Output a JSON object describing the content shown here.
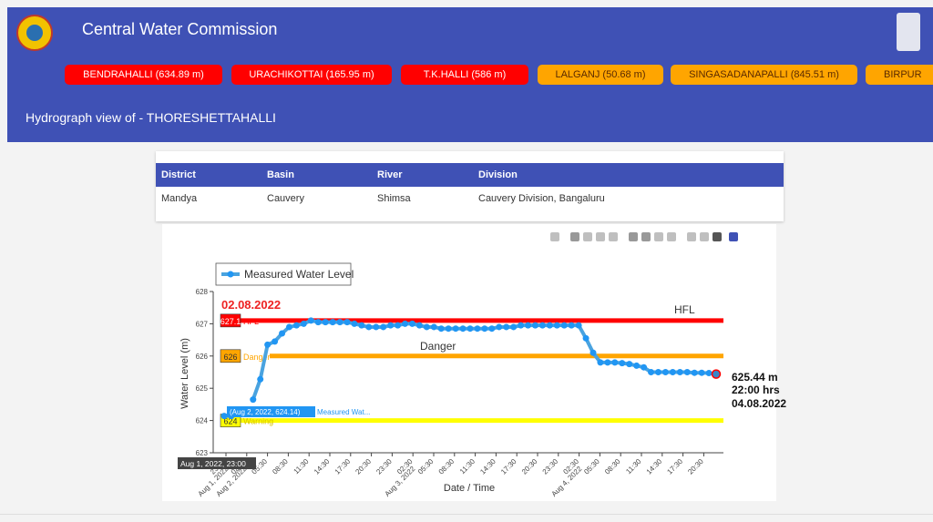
{
  "header": {
    "title": "Central Water Commission"
  },
  "ticker": [
    {
      "label": "BENDRAHALLI (634.89 m)",
      "status": "red"
    },
    {
      "label": "URACHIKOTTAI (165.95 m)",
      "status": "red"
    },
    {
      "label": "T.K.HALLI (586 m)",
      "status": "red"
    },
    {
      "label": "LALGANJ (50.68 m)",
      "status": "orange"
    },
    {
      "label": "SINGASADANAPALLI (845.51 m)",
      "status": "orange"
    },
    {
      "label": "BIRPUR",
      "status": "orange"
    }
  ],
  "subheader": {
    "title": "Hydrograph view of - THORESHETTAHALLI"
  },
  "station_table": {
    "headers": [
      "District",
      "Basin",
      "River",
      "Division"
    ],
    "values": [
      "Mandya",
      "Cauvery",
      "Shimsa",
      "Cauvery Division, Bangaluru"
    ]
  },
  "colors": {
    "header_bg": "#3f51b5",
    "series": "#4aa3df",
    "hfl": "#ff0000",
    "danger": "#ffa500",
    "warning": "#ffff00"
  },
  "chart_data": {
    "type": "line",
    "xlabel": "Date / Time",
    "ylabel": "Water Level (m)",
    "ylim": [
      623,
      628
    ],
    "yticks": [
      623,
      624,
      625,
      626,
      627,
      628
    ],
    "xticks": [
      "23:30",
      "02:30",
      "05:30",
      "08:30",
      "11:30",
      "14:30",
      "17:30",
      "20:30",
      "23:30",
      "02:30",
      "05:30",
      "08:30",
      "11:30",
      "14:30",
      "17:30",
      "20:30",
      "23:30",
      "02:30",
      "05:30",
      "08:30",
      "11:30",
      "14:30",
      "17:30",
      "20:30"
    ],
    "xtick_date_labels": [
      "Aug 1, 2022",
      "Aug 2, 2022",
      "Aug 3, 2022",
      "Aug 4, 2022"
    ],
    "legend": {
      "entry": "Measured Water Level",
      "position": "top-left"
    },
    "series": [
      {
        "name": "Measured Water Level",
        "values": [
          624.14,
          624.14,
          null,
          null,
          624.65,
          625.28,
          626.35,
          626.45,
          626.7,
          626.9,
          626.95,
          627.0,
          627.1,
          627.05,
          627.05,
          627.05,
          627.05,
          627.05,
          627.0,
          626.95,
          626.9,
          626.9,
          626.9,
          626.95,
          626.95,
          627.0,
          627.0,
          626.95,
          626.9,
          626.9,
          626.85,
          626.85,
          626.85,
          626.85,
          626.85,
          626.85,
          626.85,
          626.85,
          626.9,
          626.9,
          626.9,
          626.95,
          626.95,
          626.95,
          626.95,
          626.95,
          626.95,
          626.95,
          626.95,
          626.95,
          626.55,
          626.1,
          625.8,
          625.8,
          625.8,
          625.78,
          625.75,
          625.7,
          625.65,
          625.5,
          625.5,
          625.5,
          625.5,
          625.5,
          625.5,
          625.48,
          625.48,
          625.47,
          625.44
        ]
      }
    ],
    "thresholds": [
      {
        "name": "HFL",
        "value": 627.1,
        "label": "627.1",
        "color": "#ff0000"
      },
      {
        "name": "Danger",
        "value": 626,
        "label": "626",
        "color": "#ffa500"
      },
      {
        "name": "Warning",
        "value": 624,
        "label": "624",
        "color": "#ffff00"
      }
    ],
    "annotations": {
      "date_label": "02.08.2022",
      "hfl_text": "HFL",
      "danger_text": "Danger",
      "latest_value": "625.44 m",
      "latest_time": "22:00 hrs",
      "latest_date": "04.08.2022",
      "hover_x": "Aug 1, 2022, 23:00",
      "hover_point": "(Aug 2, 2022, 624.14)",
      "hover_series": "Measured Wat..."
    }
  }
}
